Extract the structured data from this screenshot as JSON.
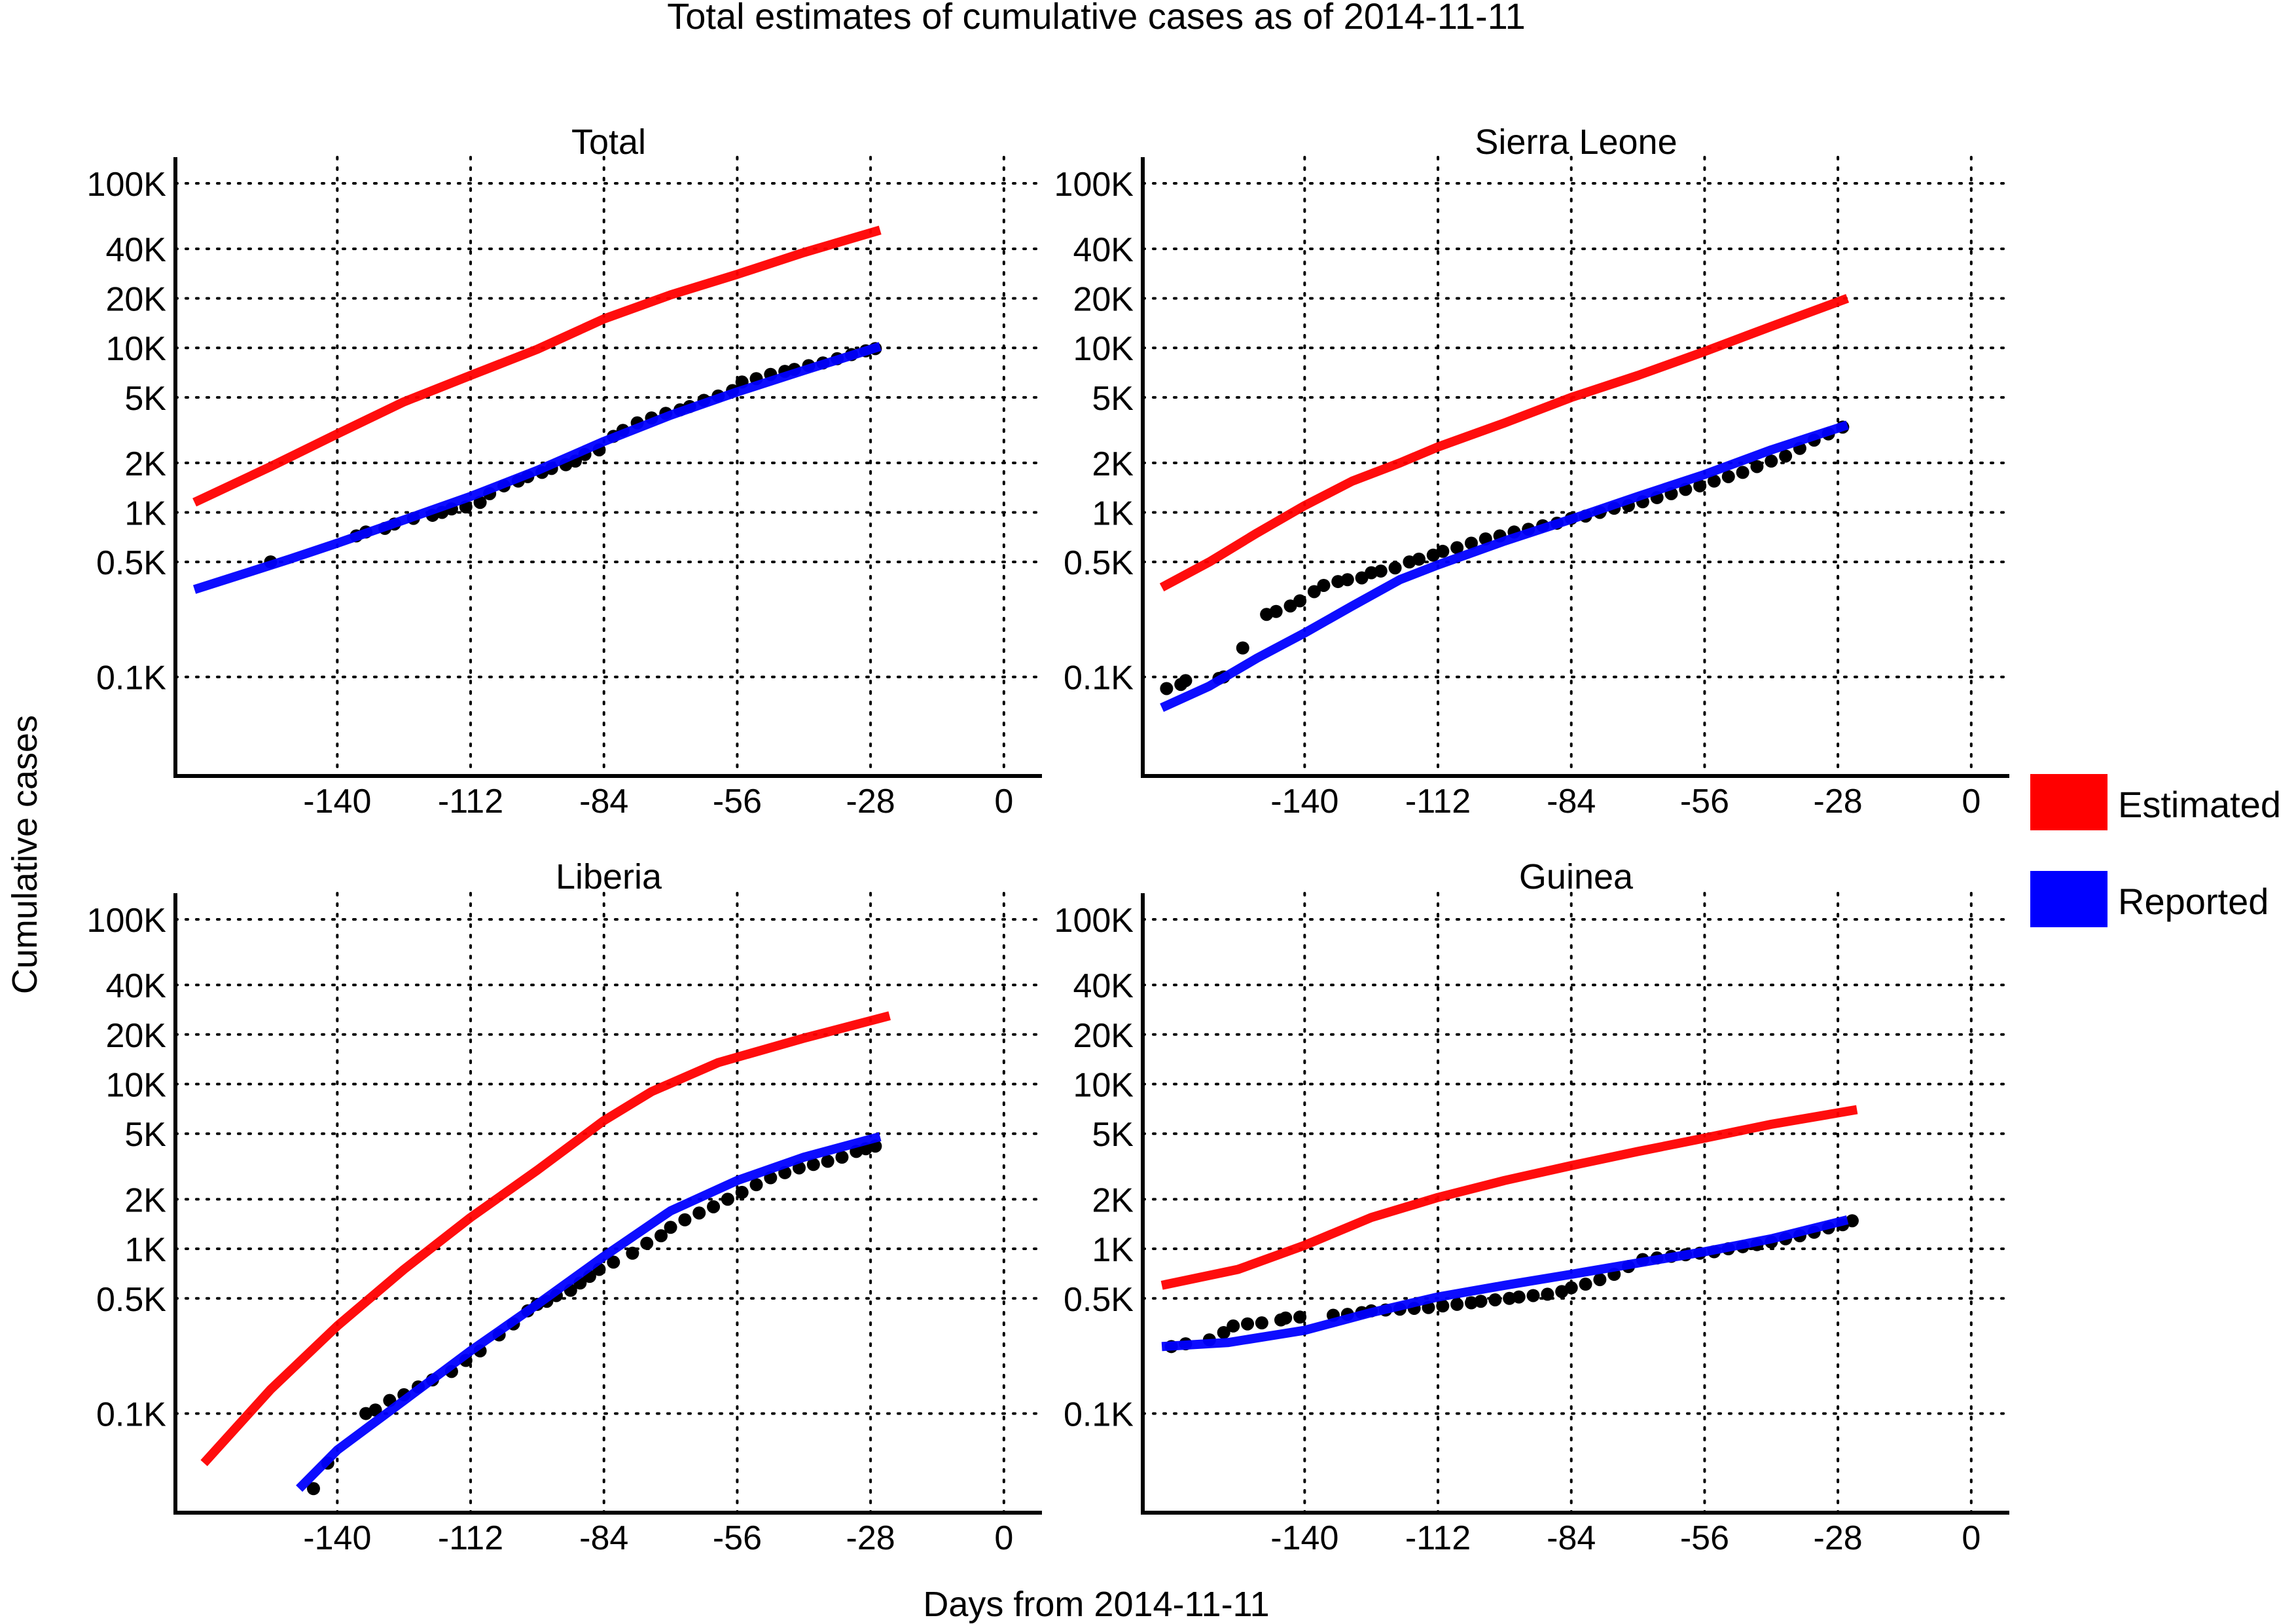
{
  "chart_data": {
    "type": "line",
    "title": "Total estimates of cumulative cases as of 2014-11-11",
    "xlabel": "Days from 2014-11-11",
    "ylabel": "Cumulative cases",
    "y_scale": "log",
    "y_ticks": [
      {
        "value": 100,
        "label": "0.1K"
      },
      {
        "value": 500,
        "label": "0.5K"
      },
      {
        "value": 1000,
        "label": "1K"
      },
      {
        "value": 2000,
        "label": "2K"
      },
      {
        "value": 5000,
        "label": "5K"
      },
      {
        "value": 10000,
        "label": "10K"
      },
      {
        "value": 20000,
        "label": "20K"
      },
      {
        "value": 40000,
        "label": "40K"
      },
      {
        "value": 100000,
        "label": "100K"
      }
    ],
    "x_ticks": [
      {
        "value": -140,
        "label": "-140"
      },
      {
        "value": -112,
        "label": "-112"
      },
      {
        "value": -84,
        "label": "-84"
      },
      {
        "value": -56,
        "label": "-56"
      },
      {
        "value": -28,
        "label": "-28"
      },
      {
        "value": 0,
        "label": "0"
      }
    ],
    "grid": true,
    "legend": {
      "placement": "right",
      "items": [
        {
          "label": "Estimated",
          "color": "#ff0000"
        },
        {
          "label": "Reported",
          "color": "#0000ff"
        }
      ]
    },
    "panels": [
      {
        "title": "Total",
        "xlim": [
          -174,
          8
        ],
        "ylim": [
          25,
          100000
        ],
        "series": [
          {
            "name": "Estimated",
            "color": "#ff0000",
            "x": [
              -170,
              -154,
              -140,
              -126,
              -112,
              -98,
              -84,
              -70,
              -56,
              -42,
              -26
            ],
            "values": [
              1150,
              1900,
              3000,
              4700,
              6800,
              9800,
              15000,
              21000,
              28000,
              38000,
              52000
            ]
          },
          {
            "name": "Reported",
            "color": "#0000ff",
            "x": [
              -170,
              -160,
              -150,
              -140,
              -126,
              -112,
              -98,
              -84,
              -70,
              -56,
              -42,
              -26
            ],
            "values": [
              340,
              420,
              520,
              650,
              900,
              1250,
              1800,
              2700,
              3900,
              5400,
              7300,
              10200
            ]
          }
        ],
        "points": {
          "color": "#000000",
          "x": [
            -154,
            -136,
            -134,
            -130,
            -128,
            -124,
            -120,
            -118,
            -116,
            -113,
            -110,
            -108,
            -105,
            -102,
            -100,
            -97,
            -95,
            -92,
            -90,
            -88,
            -85,
            -82,
            -80,
            -77,
            -74,
            -71,
            -68,
            -66,
            -63,
            -60,
            -57,
            -55,
            -52,
            -49,
            -46,
            -44,
            -41,
            -38,
            -35,
            -32,
            -29,
            -27
          ],
          "values": [
            500,
            720,
            760,
            800,
            850,
            920,
            960,
            1000,
            1050,
            1080,
            1150,
            1300,
            1450,
            1550,
            1650,
            1750,
            1850,
            1950,
            2050,
            2250,
            2400,
            2900,
            3150,
            3500,
            3750,
            4000,
            4200,
            4400,
            4800,
            5100,
            5500,
            6200,
            6500,
            6900,
            7200,
            7400,
            7800,
            8100,
            8600,
            9100,
            9600,
            9900
          ]
        }
      },
      {
        "title": "Sierra Leone",
        "xlim": [
          -174,
          8
        ],
        "ylim": [
          25,
          100000
        ],
        "series": [
          {
            "name": "Estimated",
            "color": "#ff0000",
            "x": [
              -170,
              -160,
              -150,
              -140,
              -130,
              -120,
              -112,
              -98,
              -84,
              -70,
              -56,
              -42,
              -26
            ],
            "values": [
              350,
              500,
              750,
              1100,
              1550,
              2000,
              2500,
              3500,
              5000,
              6800,
              9500,
              13500,
              20000
            ]
          },
          {
            "name": "Reported",
            "color": "#0000ff",
            "x": [
              -170,
              -160,
              -150,
              -140,
              -130,
              -120,
              -112,
              -98,
              -84,
              -70,
              -56,
              -42,
              -26
            ],
            "values": [
              65,
              88,
              130,
              185,
              270,
              390,
              480,
              670,
              910,
              1250,
              1700,
              2400,
              3400
            ]
          }
        ],
        "points": {
          "color": "#000000",
          "x": [
            -169,
            -166,
            -165,
            -158,
            -157,
            -153,
            -148,
            -146,
            -143,
            -141,
            -138,
            -136,
            -133,
            -131,
            -128,
            -126,
            -124,
            -121,
            -118,
            -116,
            -113,
            -111,
            -108,
            -105,
            -102,
            -99,
            -96,
            -93,
            -90,
            -87,
            -84,
            -81,
            -78,
            -75,
            -72,
            -69,
            -66,
            -63,
            -60,
            -57,
            -54,
            -51,
            -48,
            -45,
            -42,
            -39,
            -36,
            -33,
            -30,
            -27
          ],
          "values": [
            85,
            90,
            95,
            98,
            100,
            150,
            240,
            250,
            270,
            290,
            330,
            360,
            380,
            390,
            400,
            430,
            440,
            460,
            500,
            520,
            550,
            580,
            610,
            650,
            690,
            720,
            760,
            790,
            830,
            860,
            920,
            950,
            1000,
            1060,
            1100,
            1160,
            1230,
            1300,
            1380,
            1450,
            1550,
            1650,
            1750,
            1900,
            2050,
            2200,
            2450,
            2750,
            3000,
            3300
          ]
        }
      },
      {
        "title": "Liberia",
        "xlim": [
          -174,
          8
        ],
        "ylim": [
          25,
          100000
        ],
        "series": [
          {
            "name": "Estimated",
            "color": "#ff0000",
            "x": [
              -168,
              -154,
              -140,
              -126,
              -112,
              -98,
              -84,
              -74,
              -60,
              -42,
              -24
            ],
            "values": [
              50,
              140,
              340,
              750,
              1550,
              3000,
              6000,
              9000,
              13500,
              19000,
              26000
            ]
          },
          {
            "name": "Reported",
            "color": "#0000ff",
            "x": [
              -148,
              -140,
              -126,
              -112,
              -98,
              -84,
              -70,
              -56,
              -42,
              -26
            ],
            "values": [
              35,
              60,
              120,
              240,
              460,
              900,
              1700,
              2600,
              3600,
              4800
            ]
          }
        ],
        "points": {
          "color": "#000000",
          "x": [
            -145,
            -142,
            -134,
            -132,
            -129,
            -126,
            -123,
            -120,
            -116,
            -113,
            -110,
            -106,
            -103,
            -100,
            -98,
            -96,
            -94,
            -91,
            -89,
            -87,
            -85,
            -82,
            -78,
            -75,
            -72,
            -70,
            -67,
            -64,
            -61,
            -58,
            -55,
            -52,
            -49,
            -46,
            -43,
            -40,
            -37,
            -34,
            -31,
            -29,
            -27
          ],
          "values": [
            35,
            50,
            100,
            105,
            120,
            130,
            145,
            160,
            180,
            210,
            240,
            300,
            350,
            420,
            460,
            480,
            520,
            560,
            620,
            680,
            750,
            830,
            940,
            1080,
            1200,
            1350,
            1500,
            1650,
            1800,
            2000,
            2200,
            2450,
            2700,
            2900,
            3100,
            3250,
            3400,
            3600,
            3900,
            4050,
            4200
          ]
        }
      },
      {
        "title": "Guinea",
        "xlim": [
          -174,
          8
        ],
        "ylim": [
          25,
          100000
        ],
        "series": [
          {
            "name": "Estimated",
            "color": "#ff0000",
            "x": [
              -170,
              -154,
              -140,
              -126,
              -112,
              -98,
              -84,
              -70,
              -56,
              -42,
              -24
            ],
            "values": [
              600,
              750,
              1050,
              1550,
              2050,
              2600,
              3200,
              3900,
              4700,
              5700,
              7000
            ]
          },
          {
            "name": "Reported",
            "color": "#0000ff",
            "x": [
              -170,
              -156,
              -140,
              -126,
              -112,
              -98,
              -84,
              -70,
              -56,
              -42,
              -26
            ],
            "values": [
              255,
              270,
              320,
              410,
              510,
              600,
              700,
              820,
              960,
              1150,
              1500
            ]
          }
        ],
        "points": {
          "color": "#000000",
          "x": [
            -168,
            -165,
            -160,
            -157,
            -155,
            -152,
            -149,
            -145,
            -144,
            -141,
            -134,
            -131,
            -128,
            -126,
            -123,
            -120,
            -117,
            -114,
            -111,
            -108,
            -105,
            -103,
            -100,
            -97,
            -95,
            -92,
            -89,
            -86,
            -84,
            -81,
            -78,
            -75,
            -72,
            -69,
            -66,
            -63,
            -60,
            -57,
            -54,
            -51,
            -48,
            -45,
            -42,
            -39,
            -36,
            -33,
            -30,
            -27,
            -25
          ],
          "values": [
            255,
            265,
            280,
            310,
            340,
            350,
            355,
            370,
            380,
            385,
            395,
            400,
            410,
            420,
            425,
            430,
            435,
            440,
            450,
            460,
            470,
            480,
            490,
            500,
            510,
            520,
            530,
            550,
            580,
            610,
            650,
            700,
            780,
            860,
            880,
            900,
            920,
            940,
            960,
            1000,
            1030,
            1060,
            1100,
            1150,
            1200,
            1260,
            1340,
            1400,
            1480
          ]
        }
      }
    ]
  }
}
